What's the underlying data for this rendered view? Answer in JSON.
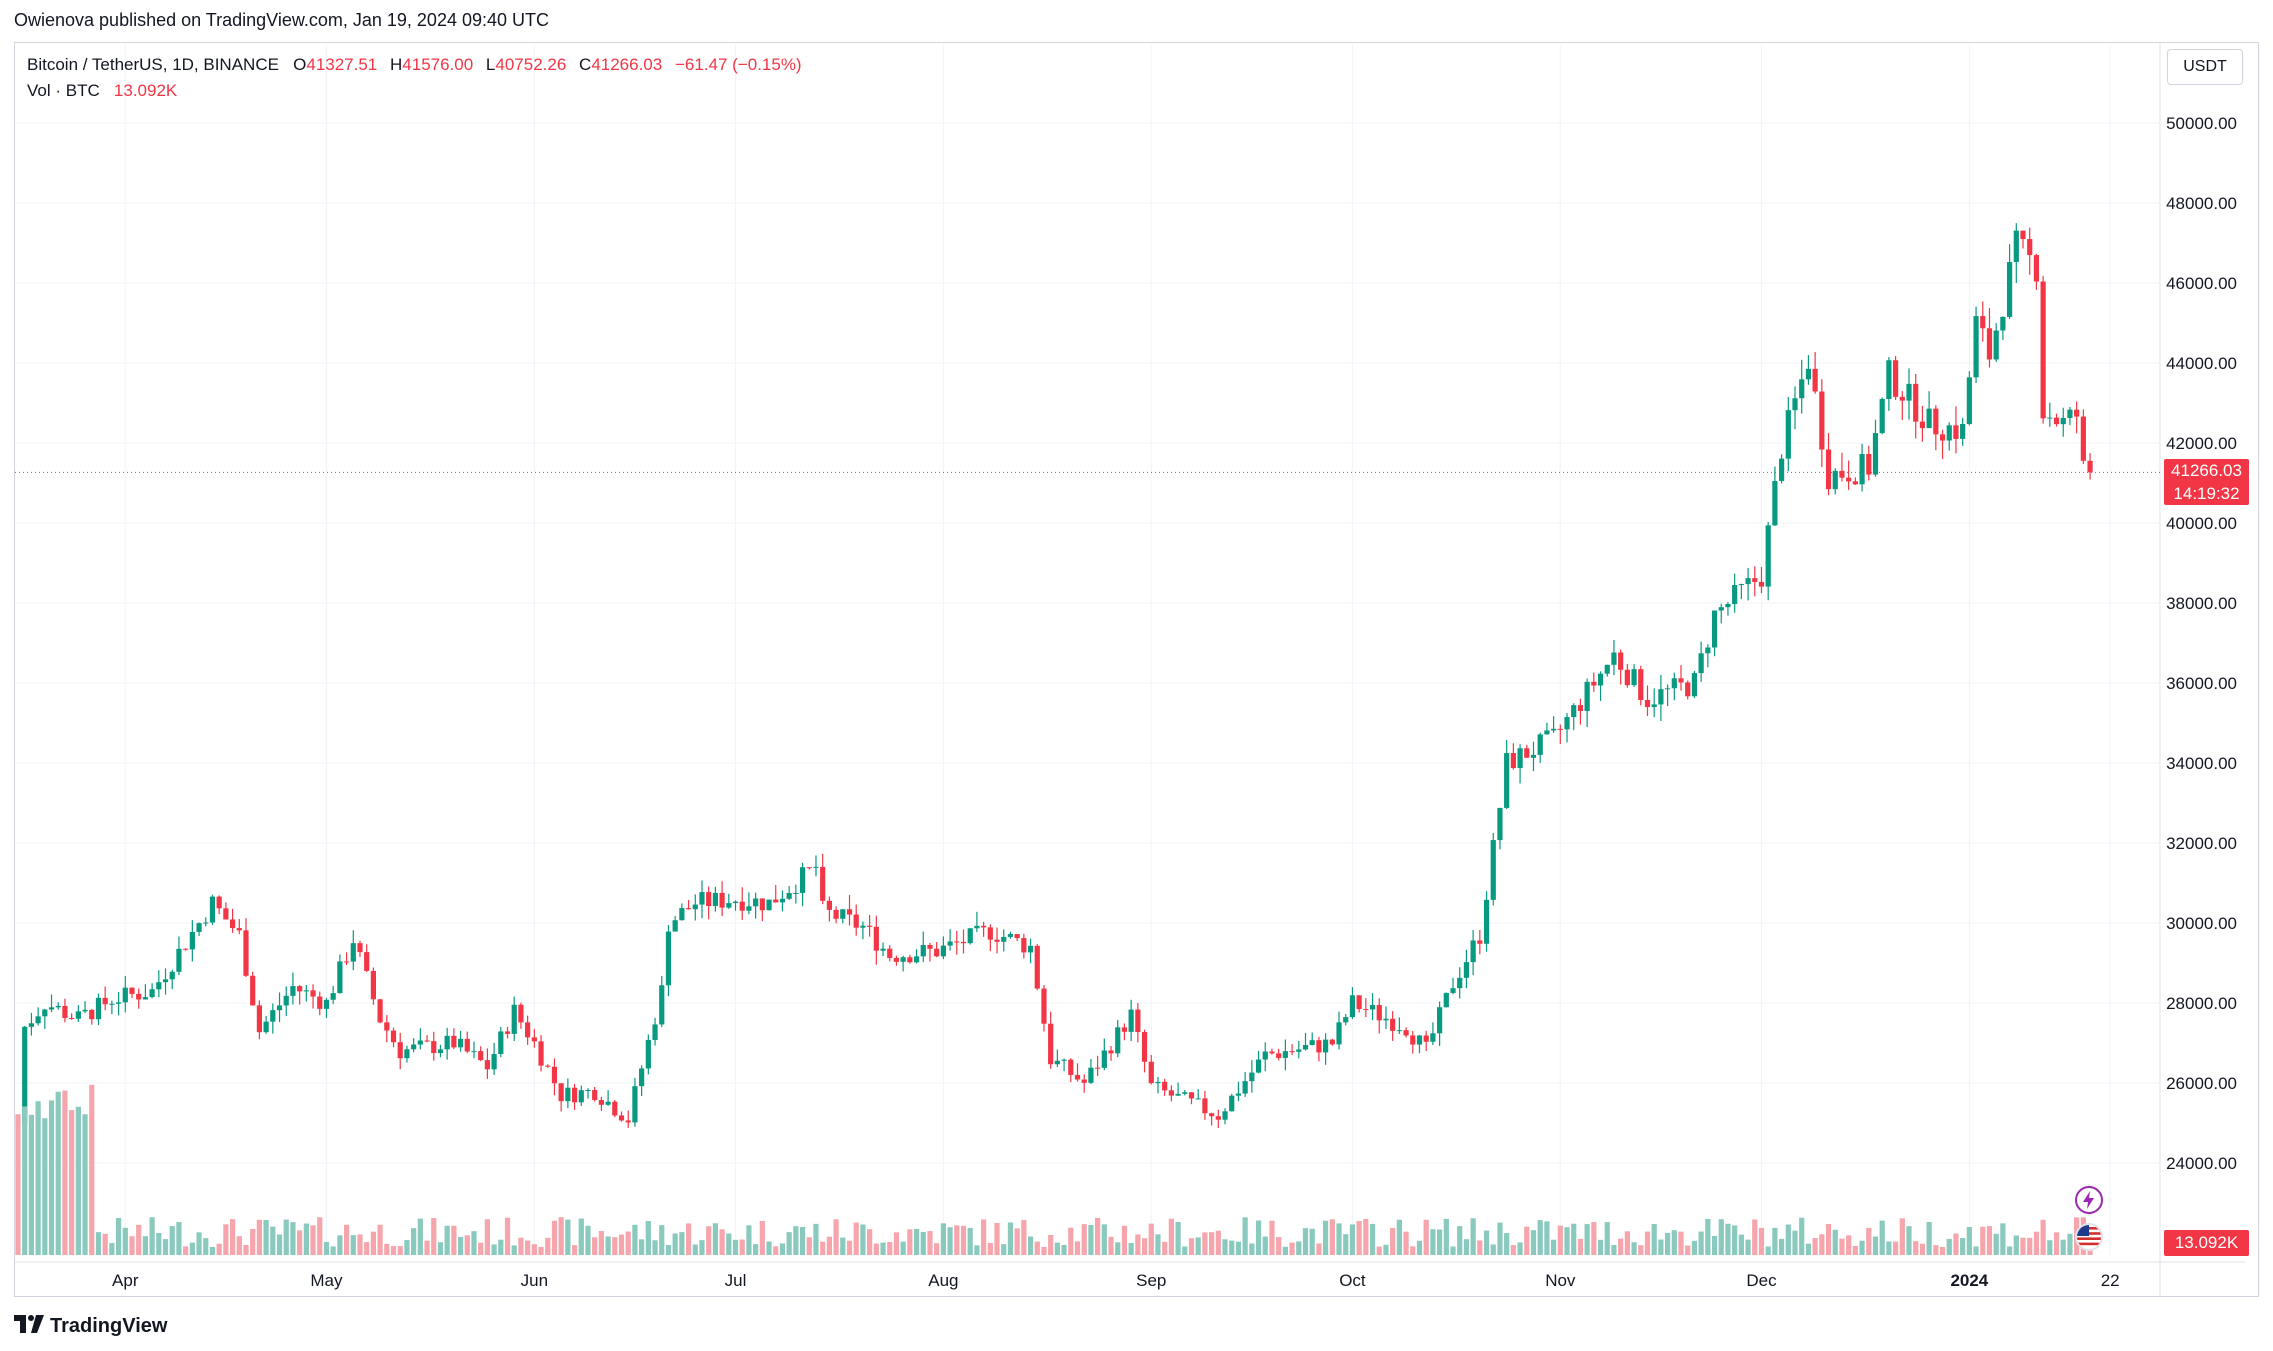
{
  "header": {
    "caption": "Owienova published on TradingView.com, Jan 19, 2024 09:40 UTC"
  },
  "legend": {
    "symbol": "Bitcoin / TetherUS, 1D, BINANCE",
    "o_label": "O",
    "o_value": "41327.51",
    "h_label": "H",
    "h_value": "41576.00",
    "l_label": "L",
    "l_value": "40752.26",
    "c_label": "C",
    "c_value": "41266.03",
    "change": "−61.47 (−0.15%)",
    "vol_label": "Vol · BTC",
    "vol_value": "13.092K"
  },
  "currency_button": "USDT",
  "price_badge": {
    "price": "41266.03",
    "countdown": "14:19:32"
  },
  "volume_badge": "13.092K",
  "footer": {
    "brand": "TradingView",
    "logo_icon": "tradingview-logo-icon"
  },
  "icons": [
    "lightning-bolt-icon",
    "us-flag-icon"
  ],
  "colors": {
    "up": "#089981",
    "down": "#F23645",
    "vol_up": "#89c9be",
    "vol_down": "#f5a5ab",
    "last_price_line": "#F23645"
  },
  "chart_data": {
    "type": "candlestick",
    "instrument": "Bitcoin / TetherUS",
    "timeframe": "1D",
    "exchange": "BINANCE",
    "currency": "USDT",
    "ylim": [
      22000,
      51000
    ],
    "y_ticks": [
      24000,
      26000,
      28000,
      30000,
      32000,
      34000,
      36000,
      38000,
      40000,
      42000,
      44000,
      46000,
      48000,
      50000
    ],
    "y_tick_labels": [
      "24000.00",
      "26000.00",
      "28000.00",
      "30000.00",
      "32000.00",
      "34000.00",
      "36000.00",
      "38000.00",
      "40000.00",
      "42000.00",
      "44000.00",
      "46000.00",
      "48000.00",
      "50000.00"
    ],
    "x_range": [
      "2023-03-16",
      "2024-01-26"
    ],
    "x_ticks": [
      {
        "date": "2023-04-01",
        "label": "Apr"
      },
      {
        "date": "2023-05-01",
        "label": "May"
      },
      {
        "date": "2023-06-01",
        "label": "Jun"
      },
      {
        "date": "2023-07-01",
        "label": "Jul"
      },
      {
        "date": "2023-08-01",
        "label": "Aug"
      },
      {
        "date": "2023-09-01",
        "label": "Sep"
      },
      {
        "date": "2023-10-01",
        "label": "Oct"
      },
      {
        "date": "2023-11-01",
        "label": "Nov"
      },
      {
        "date": "2023-12-01",
        "label": "Dec"
      },
      {
        "date": "2024-01-01",
        "label": "2024"
      },
      {
        "date": "2024-01-22",
        "label": "22"
      }
    ],
    "last_price": 41266.03,
    "grid": true,
    "daily_close": [
      {
        "date": "2023-03-16",
        "close": 25000
      },
      {
        "date": "2023-03-17",
        "close": 27400
      },
      {
        "date": "2023-03-20",
        "close": 28000
      },
      {
        "date": "2023-03-25",
        "close": 27600
      },
      {
        "date": "2023-03-30",
        "close": 28100
      },
      {
        "date": "2023-04-05",
        "close": 28300
      },
      {
        "date": "2023-04-12",
        "close": 30000
      },
      {
        "date": "2023-04-14",
        "close": 30500
      },
      {
        "date": "2023-04-18",
        "close": 29700
      },
      {
        "date": "2023-04-21",
        "close": 27300
      },
      {
        "date": "2023-04-26",
        "close": 28400
      },
      {
        "date": "2023-05-01",
        "close": 28000
      },
      {
        "date": "2023-05-05",
        "close": 29600
      },
      {
        "date": "2023-05-09",
        "close": 27600
      },
      {
        "date": "2023-05-12",
        "close": 26800
      },
      {
        "date": "2023-05-20",
        "close": 27000
      },
      {
        "date": "2023-05-25",
        "close": 26400
      },
      {
        "date": "2023-05-29",
        "close": 27800
      },
      {
        "date": "2023-06-01",
        "close": 27000
      },
      {
        "date": "2023-06-05",
        "close": 25700
      },
      {
        "date": "2023-06-10",
        "close": 25800
      },
      {
        "date": "2023-06-15",
        "close": 25100
      },
      {
        "date": "2023-06-20",
        "close": 28300
      },
      {
        "date": "2023-06-21",
        "close": 30000
      },
      {
        "date": "2023-06-25",
        "close": 30500
      },
      {
        "date": "2023-07-01",
        "close": 30600
      },
      {
        "date": "2023-07-06",
        "close": 30500
      },
      {
        "date": "2023-07-13",
        "close": 31400
      },
      {
        "date": "2023-07-14",
        "close": 30300
      },
      {
        "date": "2023-07-20",
        "close": 29900
      },
      {
        "date": "2023-07-24",
        "close": 29200
      },
      {
        "date": "2023-07-31",
        "close": 29300
      },
      {
        "date": "2023-08-08",
        "close": 29800
      },
      {
        "date": "2023-08-14",
        "close": 29400
      },
      {
        "date": "2023-08-17",
        "close": 26600
      },
      {
        "date": "2023-08-22",
        "close": 26000
      },
      {
        "date": "2023-08-29",
        "close": 27700
      },
      {
        "date": "2023-09-01",
        "close": 25900
      },
      {
        "date": "2023-09-11",
        "close": 25200
      },
      {
        "date": "2023-09-18",
        "close": 26700
      },
      {
        "date": "2023-09-28",
        "close": 27000
      },
      {
        "date": "2023-10-01",
        "close": 28000
      },
      {
        "date": "2023-10-09",
        "close": 27400
      },
      {
        "date": "2023-10-12",
        "close": 26800
      },
      {
        "date": "2023-10-16",
        "close": 28500
      },
      {
        "date": "2023-10-20",
        "close": 29700
      },
      {
        "date": "2023-10-24",
        "close": 34000
      },
      {
        "date": "2023-10-31",
        "close": 34600
      },
      {
        "date": "2023-11-09",
        "close": 36700
      },
      {
        "date": "2023-11-14",
        "close": 35600
      },
      {
        "date": "2023-11-21",
        "close": 36000
      },
      {
        "date": "2023-11-24",
        "close": 37700
      },
      {
        "date": "2023-12-01",
        "close": 38700
      },
      {
        "date": "2023-12-04",
        "close": 41900
      },
      {
        "date": "2023-12-08",
        "close": 44100
      },
      {
        "date": "2023-12-11",
        "close": 41200
      },
      {
        "date": "2023-12-17",
        "close": 41400
      },
      {
        "date": "2023-12-20",
        "close": 43700
      },
      {
        "date": "2023-12-26",
        "close": 42500
      },
      {
        "date": "2023-12-31",
        "close": 42300
      },
      {
        "date": "2024-01-02",
        "close": 45000
      },
      {
        "date": "2024-01-04",
        "close": 44200
      },
      {
        "date": "2024-01-08",
        "close": 46900
      },
      {
        "date": "2024-01-11",
        "close": 46400
      },
      {
        "date": "2024-01-12",
        "close": 42800
      },
      {
        "date": "2024-01-15",
        "close": 42500
      },
      {
        "date": "2024-01-17",
        "close": 42700
      },
      {
        "date": "2024-01-18",
        "close": 41327.51
      },
      {
        "date": "2024-01-19",
        "close": 41266.03
      }
    ]
  }
}
